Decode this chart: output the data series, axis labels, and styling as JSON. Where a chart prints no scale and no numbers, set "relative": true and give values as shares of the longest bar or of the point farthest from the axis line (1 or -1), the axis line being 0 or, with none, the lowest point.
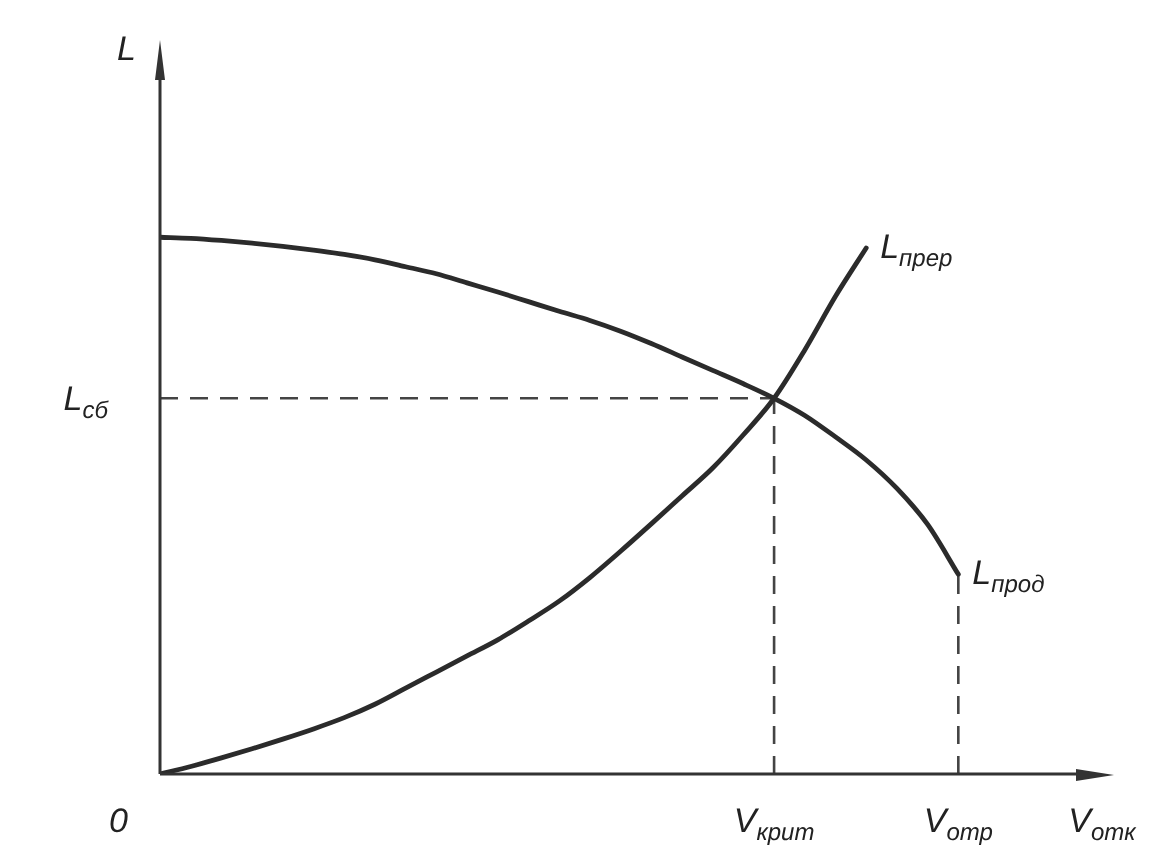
{
  "chart_data": {
    "type": "line",
    "xlabel": "V$_{отк}$",
    "ylabel": "L",
    "relative": true,
    "categories": [
      "0",
      null,
      null,
      null,
      null,
      null,
      null,
      null,
      null,
      null,
      null,
      null,
      null,
      null,
      null,
      null,
      null,
      null,
      null,
      null,
      "V$_{крит}$",
      null,
      null,
      null,
      null,
      null,
      "V$_{отр}$"
    ],
    "series": [
      {
        "name": "L$_{прод}$",
        "color": "#2b2b2b",
        "values": [
          1.0,
          0.998,
          0.994,
          0.989,
          0.983,
          0.976,
          0.968,
          0.958,
          0.945,
          0.932,
          0.915,
          0.898,
          0.88,
          0.862,
          0.845,
          0.825,
          0.802,
          0.777,
          0.752,
          0.727,
          0.7,
          0.668,
          0.628,
          0.585,
          0.532,
          0.465,
          0.372
        ]
      },
      {
        "name": "L$_{прер}$",
        "color": "#2b2b2b",
        "values": [
          0,
          0.014,
          0.03,
          0.047,
          0.065,
          0.084,
          0.105,
          0.13,
          0.16,
          0.19,
          0.22,
          0.25,
          0.285,
          0.322,
          0.366,
          0.415,
          0.466,
          0.518,
          0.57,
          0.632,
          0.7,
          0.79,
          0.89,
          0.98,
          null,
          null,
          null
        ]
      }
    ],
    "ref_lines": [
      {
        "axis": "y",
        "value": 0.7,
        "label": "L$_{сб}$",
        "color": "#444444",
        "line_style": "dashed"
      },
      {
        "axis": "x",
        "value": "V$_{крит}$",
        "color": "#444444",
        "line_style": "dashed"
      },
      {
        "axis": "x",
        "value": "V$_{отр}$",
        "color": "#444444",
        "line_style": "dashed"
      }
    ]
  }
}
